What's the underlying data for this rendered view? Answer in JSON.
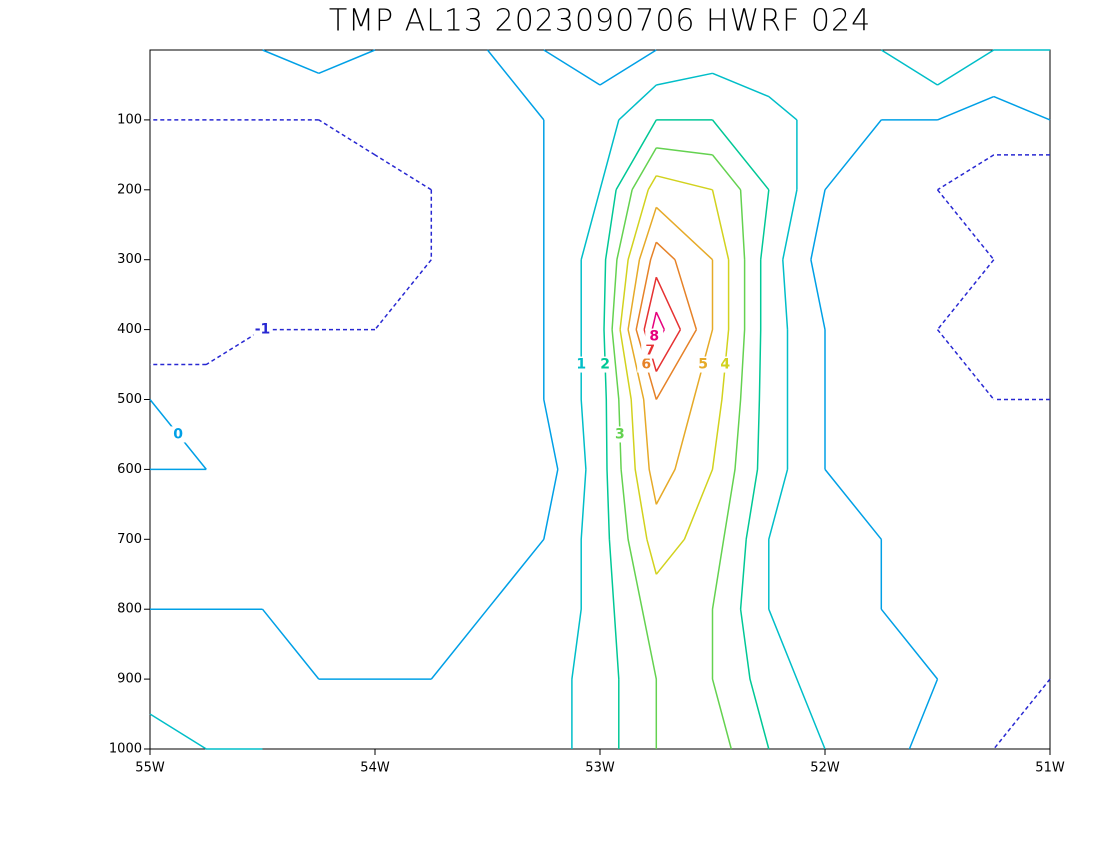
{
  "chart_data": {
    "type": "contour",
    "title": "TMP AL13 2023090706 HWRF 024",
    "x": [
      -55,
      -54.75,
      -54.5,
      -54.25,
      -54,
      -53.75,
      -53.5,
      -53.25,
      -53,
      -52.75,
      -52.5,
      -52.25,
      -52,
      -51.75,
      -51.5,
      -51.25,
      -51
    ],
    "y": [
      0,
      100,
      200,
      300,
      400,
      500,
      600,
      700,
      800,
      900,
      1000
    ],
    "z": [
      [
        0,
        -0.5,
        0,
        0.5,
        0,
        -1,
        0,
        0,
        -0.5,
        0,
        0.5,
        0,
        0,
        1,
        2,
        1,
        1
      ],
      [
        -1,
        -1,
        -1,
        -1,
        -0.5,
        -1,
        -0.5,
        0,
        0.5,
        2,
        2,
        1.5,
        0.5,
        0,
        0,
        -0.5,
        0
      ],
      [
        -2,
        -2,
        -1.5,
        -1.5,
        -1.5,
        -1,
        -0.5,
        0,
        1,
        4.5,
        4,
        2,
        0,
        -0.5,
        -1,
        -1.5,
        -2
      ],
      [
        -2,
        -1.5,
        -1.5,
        -1.5,
        -2,
        -1,
        -1,
        0,
        1.5,
        6.5,
        5,
        1.5,
        -0.5,
        -1,
        -1,
        -1,
        -1.5
      ],
      [
        -2,
        -1.5,
        -1,
        -1,
        -1,
        -1,
        -1,
        0,
        1.5,
        8.5,
        5,
        1.5,
        0,
        -0.5,
        -1,
        -1.5,
        -2
      ],
      [
        0,
        -0.5,
        -0.5,
        -1,
        -1,
        -0.5,
        -1,
        0,
        1.5,
        6,
        4.5,
        1.5,
        0,
        -0.5,
        -1,
        -1,
        -1
      ],
      [
        0,
        0,
        -0.5,
        -1,
        -1,
        -0.5,
        -1,
        -0.5,
        1.5,
        5.5,
        4,
        1.5,
        0,
        -0.5,
        -1,
        -1,
        -1
      ],
      [
        -0.5,
        -1,
        -1,
        -0.5,
        -0.5,
        -0.5,
        -0.5,
        0,
        1.5,
        4.5,
        3.5,
        1,
        0,
        0,
        -0.5,
        -1,
        -1
      ],
      [
        0,
        0,
        0,
        -0.5,
        -0.5,
        -0.5,
        0,
        0,
        1.5,
        3.5,
        3,
        1,
        0.5,
        0,
        -0.5,
        -1,
        -1
      ],
      [
        0.5,
        0.5,
        0.5,
        0,
        0,
        0,
        0,
        0.5,
        1.5,
        3,
        3,
        1.5,
        0.5,
        0,
        0,
        -0.5,
        -1
      ],
      [
        1.5,
        1,
        1,
        0.5,
        0.5,
        0.5,
        0,
        0.5,
        1.5,
        3,
        3.5,
        2,
        1,
        0.5,
        -0.5,
        -1,
        -1.5
      ]
    ],
    "levels": [
      -2,
      -1,
      0,
      1,
      2,
      3,
      4,
      5,
      6,
      7,
      8
    ],
    "level_colors": [
      "#8c00c8",
      "#2828d2",
      "#00a0e6",
      "#00bec8",
      "#00c896",
      "#64d250",
      "#d2d21e",
      "#e6aa28",
      "#e68228",
      "#e63232",
      "#e6007d"
    ],
    "negative_dashed": true,
    "xlim": [
      -55,
      -51
    ],
    "ylim": [
      1000,
      0
    ],
    "xticks": [
      {
        "value": -55,
        "label": "55W"
      },
      {
        "value": -54,
        "label": "54W"
      },
      {
        "value": -53,
        "label": "53W"
      },
      {
        "value": -52,
        "label": "52W"
      },
      {
        "value": -51,
        "label": "51W"
      }
    ],
    "yticks": [
      100,
      200,
      300,
      400,
      500,
      600,
      700,
      800,
      900,
      1000
    ]
  }
}
